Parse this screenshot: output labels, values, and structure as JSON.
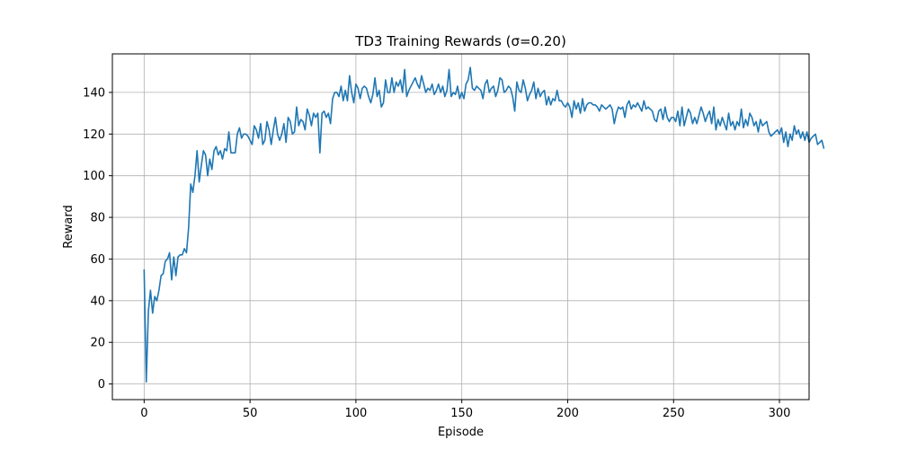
{
  "chart_data": {
    "type": "line",
    "title": "TD3 Training Rewards (σ=0.20)",
    "xlabel": "Episode",
    "ylabel": "Reward",
    "xlim": [
      -15,
      314
    ],
    "ylim": [
      -7.5,
      158.5
    ],
    "xticks": [
      0,
      50,
      100,
      150,
      200,
      250,
      300
    ],
    "yticks": [
      0,
      20,
      40,
      60,
      80,
      100,
      120,
      140
    ],
    "grid": true,
    "series_color": "#1f77b4",
    "series": [
      {
        "values": [
          55,
          1,
          35,
          45,
          34,
          42,
          40,
          45,
          52,
          53,
          59,
          60,
          63,
          50,
          61,
          52,
          61,
          62,
          62,
          65,
          63,
          75,
          96,
          92,
          100,
          112,
          97,
          105,
          112,
          110,
          100,
          108,
          103,
          112,
          114,
          110,
          112,
          108,
          113,
          112,
          121,
          111,
          111,
          111,
          120,
          123,
          118,
          120,
          120,
          119,
          117,
          115,
          124,
          122,
          118,
          125,
          115,
          117,
          126,
          122,
          115,
          122,
          128,
          120,
          117,
          120,
          125,
          116,
          128,
          126,
          120,
          121,
          133,
          124,
          127,
          126,
          122,
          132,
          129,
          124,
          130,
          128,
          130,
          111,
          130,
          131,
          128,
          130,
          125,
          137,
          140,
          140,
          138,
          143,
          136,
          141,
          136,
          148,
          140,
          135,
          144,
          142,
          137,
          142,
          143,
          142,
          138,
          135,
          139,
          147,
          138,
          141,
          133,
          135,
          146,
          140,
          140,
          147,
          140,
          145,
          143,
          146,
          140,
          151,
          138,
          141,
          143,
          145,
          147,
          144,
          142,
          148,
          144,
          140,
          142,
          141,
          144,
          139,
          141,
          144,
          140,
          143,
          138,
          141,
          151,
          138,
          140,
          139,
          143,
          137,
          140,
          137,
          144,
          146,
          152,
          142,
          141,
          143,
          142,
          141,
          137,
          144,
          146,
          140,
          142,
          143,
          138,
          141,
          147,
          146,
          140,
          141,
          143,
          142,
          138,
          131,
          145,
          141,
          140,
          146,
          142,
          136,
          139,
          141,
          145,
          137,
          142,
          138,
          140,
          141,
          134,
          138,
          134,
          137,
          136,
          141,
          136,
          136,
          134,
          133,
          135,
          133,
          128,
          136,
          132,
          135,
          130,
          137,
          131,
          134,
          135,
          135,
          134,
          134,
          133,
          131,
          134,
          133,
          132,
          133,
          134,
          132,
          125,
          130,
          133,
          132,
          133,
          128,
          134,
          136,
          132,
          134,
          133,
          135,
          133,
          131,
          136,
          132,
          133,
          132,
          131,
          127,
          126,
          131,
          132,
          127,
          133,
          128,
          126,
          128,
          128,
          126,
          131,
          124,
          133,
          124,
          128,
          132,
          130,
          125,
          128,
          125,
          129,
          133,
          130,
          126,
          129,
          131,
          125,
          133,
          122,
          127,
          124,
          128,
          125,
          122,
          130,
          124,
          126,
          122,
          126,
          124,
          132,
          123,
          127,
          124,
          130,
          128,
          124,
          126,
          121,
          127,
          124,
          125,
          126,
          121,
          119,
          120,
          121,
          122,
          120,
          123,
          116,
          121,
          114,
          120,
          117,
          124,
          120,
          122,
          118,
          121,
          117,
          121,
          116,
          118,
          119,
          120,
          115,
          116,
          117,
          113
        ]
      }
    ]
  }
}
